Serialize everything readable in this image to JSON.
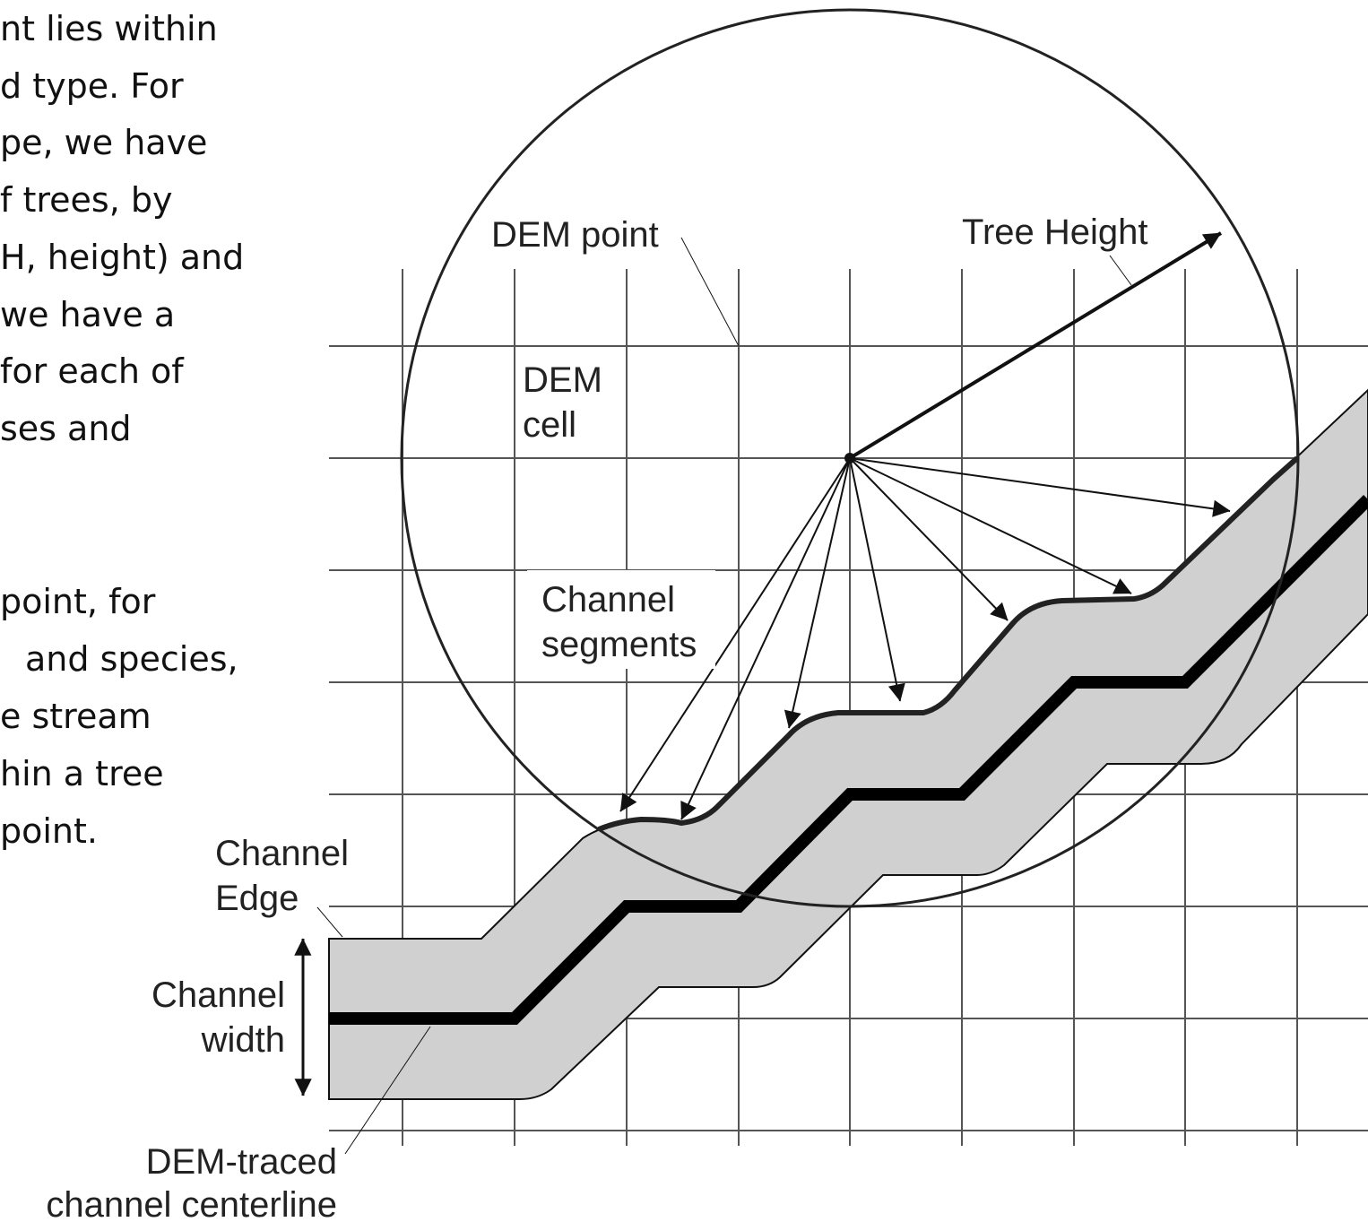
{
  "body_text": [
    "nt lies within",
    "d type. For",
    "pe, we have",
    "f trees, by",
    "H, height) and",
    "we have a",
    "for each of",
    "ses and",
    "point, for",
    "and species,",
    "e stream",
    "hin a tree",
    "point."
  ],
  "labels": {
    "dem_point": "DEM point",
    "tree_height": "Tree Height",
    "dem_cell": [
      "DEM",
      "cell"
    ],
    "channel_segments": [
      "Channel",
      "segments"
    ],
    "channel_edge": [
      "Channel",
      "Edge"
    ],
    "channel_width": [
      "Channel",
      "width"
    ],
    "centerline": [
      "DEM-traced",
      "channel centerline"
    ]
  }
}
